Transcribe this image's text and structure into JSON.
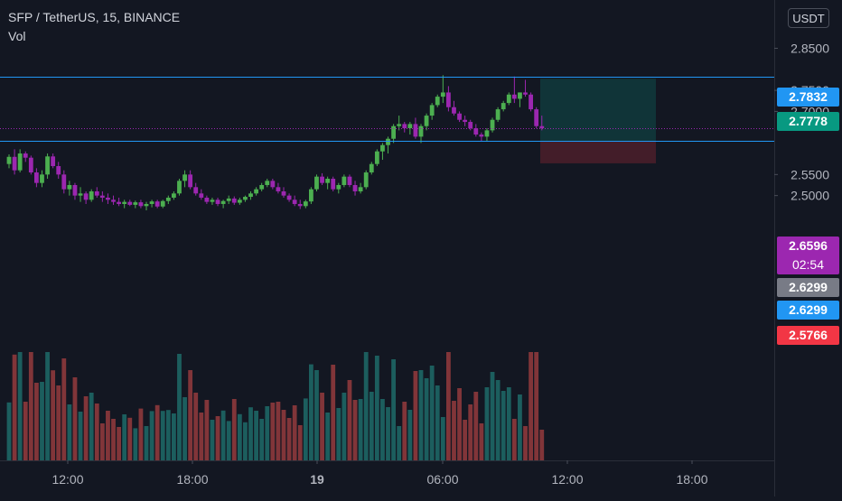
{
  "header": {
    "symbol_line": "SFP / TetherUS, 15, BINANCE",
    "indicator": "Vol",
    "currency": "USDT"
  },
  "chart_data": {
    "type": "candlestick",
    "symbol": "SFP / TetherUS",
    "interval": "15",
    "exchange": "BINANCE",
    "ylim": [
      2.465,
      2.885
    ],
    "y_ticks": [
      "2.8500",
      "2.7500",
      "2.7000",
      "2.5500",
      "2.5000"
    ],
    "x_ticks": [
      "12:00",
      "18:00",
      "19",
      "06:00",
      "12:00",
      "18:00"
    ],
    "price_labels": [
      {
        "text": "2.7832",
        "color": "#2196f3"
      },
      {
        "text": "2.7778",
        "color": "#089981"
      },
      {
        "text": "2.6596",
        "color": "#9c27b0",
        "countdown": "02:54"
      },
      {
        "text": "2.6299",
        "color": "#787b86"
      },
      {
        "text": "2.6299",
        "color": "#2196f3"
      },
      {
        "text": "2.5766",
        "color": "#f23645"
      }
    ],
    "horizontal_lines": [
      2.7832,
      2.6299
    ],
    "position": {
      "entry": 2.6299,
      "target": 2.7778,
      "stop": 2.5766
    },
    "colors": {
      "up": "#26a69a",
      "down": "#ef5350",
      "bull_bar": "#4caf50",
      "bear_bar": "#9c27b0",
      "line": "#2196f3"
    },
    "candles": [
      [
        2.575,
        2.598,
        2.565,
        2.592
      ],
      [
        2.592,
        2.61,
        2.55,
        2.56
      ],
      [
        2.56,
        2.61,
        2.555,
        2.6
      ],
      [
        2.6,
        2.605,
        2.58,
        2.59
      ],
      [
        2.59,
        2.595,
        2.55,
        2.555
      ],
      [
        2.555,
        2.565,
        2.52,
        2.53
      ],
      [
        2.53,
        2.56,
        2.52,
        2.55
      ],
      [
        2.55,
        2.6,
        2.54,
        2.593
      ],
      [
        2.593,
        2.6,
        2.565,
        2.57
      ],
      [
        2.57,
        2.58,
        2.54,
        2.55
      ],
      [
        2.55,
        2.56,
        2.505,
        2.515
      ],
      [
        2.515,
        2.535,
        2.5,
        2.525
      ],
      [
        2.525,
        2.53,
        2.49,
        2.5
      ],
      [
        2.5,
        2.52,
        2.485,
        2.505
      ],
      [
        2.505,
        2.51,
        2.48,
        2.49
      ],
      [
        2.49,
        2.515,
        2.485,
        2.51
      ],
      [
        2.51,
        2.52,
        2.495,
        2.5
      ],
      [
        2.5,
        2.51,
        2.485,
        2.495
      ],
      [
        2.495,
        2.505,
        2.48,
        2.49
      ],
      [
        2.49,
        2.5,
        2.478,
        2.485
      ],
      [
        2.485,
        2.495,
        2.475,
        2.48
      ],
      [
        2.48,
        2.49,
        2.47,
        2.485
      ],
      [
        2.485,
        2.49,
        2.475,
        2.478
      ],
      [
        2.478,
        2.488,
        2.47,
        2.484
      ],
      [
        2.484,
        2.49,
        2.47,
        2.475
      ],
      [
        2.475,
        2.485,
        2.465,
        2.48
      ],
      [
        2.48,
        2.49,
        2.472,
        2.486
      ],
      [
        2.486,
        2.49,
        2.47,
        2.474
      ],
      [
        2.474,
        2.49,
        2.47,
        2.487
      ],
      [
        2.487,
        2.5,
        2.48,
        2.495
      ],
      [
        2.495,
        2.51,
        2.49,
        2.505
      ],
      [
        2.505,
        2.54,
        2.5,
        2.535
      ],
      [
        2.535,
        2.56,
        2.52,
        2.55
      ],
      [
        2.55,
        2.56,
        2.515,
        2.52
      ],
      [
        2.52,
        2.53,
        2.5,
        2.505
      ],
      [
        2.505,
        2.515,
        2.49,
        2.495
      ],
      [
        2.495,
        2.5,
        2.48,
        2.485
      ],
      [
        2.485,
        2.495,
        2.478,
        2.49
      ],
      [
        2.49,
        2.495,
        2.475,
        2.48
      ],
      [
        2.48,
        2.49,
        2.47,
        2.487
      ],
      [
        2.487,
        2.5,
        2.48,
        2.493
      ],
      [
        2.493,
        2.498,
        2.478,
        2.483
      ],
      [
        2.483,
        2.495,
        2.478,
        2.49
      ],
      [
        2.49,
        2.5,
        2.485,
        2.497
      ],
      [
        2.497,
        2.51,
        2.49,
        2.505
      ],
      [
        2.505,
        2.52,
        2.5,
        2.515
      ],
      [
        2.515,
        2.53,
        2.51,
        2.525
      ],
      [
        2.525,
        2.54,
        2.52,
        2.535
      ],
      [
        2.535,
        2.54,
        2.515,
        2.52
      ],
      [
        2.52,
        2.53,
        2.505,
        2.51
      ],
      [
        2.51,
        2.52,
        2.495,
        2.5
      ],
      [
        2.5,
        2.505,
        2.485,
        2.49
      ],
      [
        2.49,
        2.5,
        2.475,
        2.48
      ],
      [
        2.48,
        2.49,
        2.468,
        2.475
      ],
      [
        2.475,
        2.49,
        2.47,
        2.486
      ],
      [
        2.486,
        2.52,
        2.48,
        2.515
      ],
      [
        2.515,
        2.55,
        2.51,
        2.545
      ],
      [
        2.545,
        2.553,
        2.525,
        2.53
      ],
      [
        2.53,
        2.545,
        2.515,
        2.54
      ],
      [
        2.54,
        2.545,
        2.51,
        2.515
      ],
      [
        2.515,
        2.53,
        2.505,
        2.525
      ],
      [
        2.525,
        2.55,
        2.52,
        2.545
      ],
      [
        2.545,
        2.55,
        2.52,
        2.525
      ],
      [
        2.525,
        2.535,
        2.5,
        2.51
      ],
      [
        2.51,
        2.53,
        2.505,
        2.52
      ],
      [
        2.52,
        2.56,
        2.515,
        2.555
      ],
      [
        2.555,
        2.58,
        2.55,
        2.575
      ],
      [
        2.575,
        2.61,
        2.57,
        2.605
      ],
      [
        2.605,
        2.625,
        2.585,
        2.62
      ],
      [
        2.62,
        2.64,
        2.6,
        2.635
      ],
      [
        2.635,
        2.67,
        2.625,
        2.665
      ],
      [
        2.665,
        2.69,
        2.655,
        2.67
      ],
      [
        2.67,
        2.675,
        2.65,
        2.66
      ],
      [
        2.66,
        2.675,
        2.645,
        2.67
      ],
      [
        2.67,
        2.685,
        2.635,
        2.64
      ],
      [
        2.64,
        2.67,
        2.625,
        2.665
      ],
      [
        2.665,
        2.695,
        2.655,
        2.69
      ],
      [
        2.69,
        2.72,
        2.68,
        2.715
      ],
      [
        2.715,
        2.74,
        2.71,
        2.735
      ],
      [
        2.735,
        2.786,
        2.72,
        2.745
      ],
      [
        2.745,
        2.76,
        2.7,
        2.71
      ],
      [
        2.71,
        2.725,
        2.69,
        2.695
      ],
      [
        2.695,
        2.7,
        2.675,
        2.68
      ],
      [
        2.68,
        2.69,
        2.665,
        2.675
      ],
      [
        2.675,
        2.68,
        2.655,
        2.66
      ],
      [
        2.66,
        2.67,
        2.64,
        2.645
      ],
      [
        2.645,
        2.65,
        2.63,
        2.64
      ],
      [
        2.64,
        2.66,
        2.63,
        2.655
      ],
      [
        2.655,
        2.685,
        2.65,
        2.68
      ],
      [
        2.68,
        2.71,
        2.675,
        2.705
      ],
      [
        2.705,
        2.725,
        2.7,
        2.72
      ],
      [
        2.72,
        2.745,
        2.715,
        2.74
      ],
      [
        2.74,
        2.783,
        2.72,
        2.73
      ],
      [
        2.73,
        2.745,
        2.71,
        2.745
      ],
      [
        2.745,
        2.775,
        2.735,
        2.74
      ],
      [
        2.74,
        2.745,
        2.7,
        2.705
      ],
      [
        2.705,
        2.71,
        2.66,
        2.665
      ],
      [
        2.665,
        2.69,
        2.655,
        2.66
      ]
    ]
  }
}
